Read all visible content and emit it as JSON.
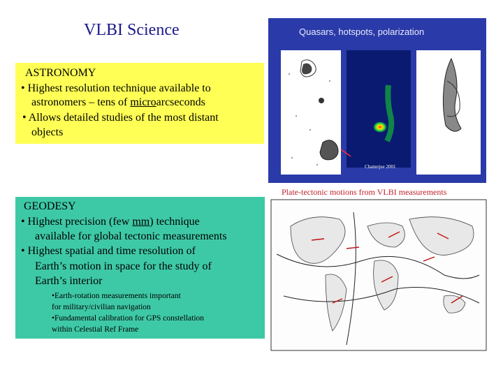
{
  "title": "VLBI Science",
  "astronomy": {
    "heading": "ASTRONOMY",
    "bullet1_prefix": "•  Highest resolution technique available to",
    "bullet1_line2_pre": "astronomers – tens of ",
    "bullet1_micro": "micro",
    "bullet1_line2_post": "arcseconds",
    "bullet2_line1": "• Allows detailed studies of the most distant",
    "bullet2_line2": "objects"
  },
  "geodesy": {
    "heading": "GEODESY",
    "bullet1_line1_pre": "•  Highest precision (few ",
    "bullet1_mm": "mm",
    "bullet1_line1_post": ") technique",
    "bullet1_line2": "available for global tectonic measurements",
    "bullet2_line1": "•  Highest spatial and time resolution of",
    "bullet2_line2": "Earth’s motion in space for the study of",
    "bullet2_line3": "Earth’s interior",
    "sub1_line1": "•Earth-rotation measurements important",
    "sub1_line2": "for military/civilian navigation",
    "sub2_line1": "•Fundamental calibration for GPS constellation",
    "sub2_line2": "within Celestial Ref Frame"
  },
  "quasar_image": {
    "title": "Quasars, hotspots, polarization",
    "credit": "Chatterjee 2001"
  },
  "map_caption": "Plate-tectonic motions from VLBI measurements",
  "colors": {
    "title": "#1a1a8c",
    "astronomy_box": "#ffff55",
    "geodesy_box": "#3ec9a6",
    "quasar_bg": "#2a3aa8",
    "map_caption": "#c0202a"
  }
}
